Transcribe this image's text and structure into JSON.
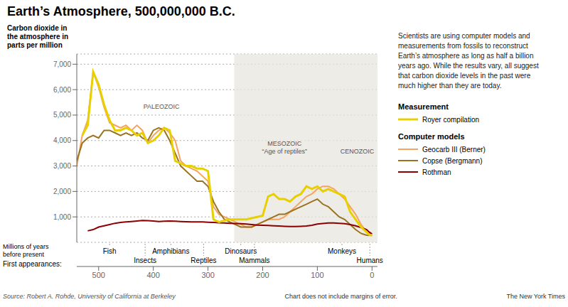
{
  "chart_data": {
    "type": "line",
    "title": "Earth’s Atmosphere, 500,000,000 B.C.",
    "description": [
      "Scientists are using computer models and",
      "measurements from fossils to reconstruct",
      "Earth’s atmosphere as long as half a billion",
      "years ago. While the results vary, all suggest",
      "that carbon dioxide levels in the past were",
      "much higher than they are today."
    ],
    "xlabel": "Millions of years\nbefore present",
    "ylabel": "Carbon dioxide in\nthe atmosphere in\nparts per million",
    "xlim": [
      540,
      -10
    ],
    "ylim": [
      0,
      7400
    ],
    "xticks": [
      500,
      400,
      300,
      200,
      100,
      0
    ],
    "yticks": [
      {
        "value": 1000,
        "label": "1,000"
      },
      {
        "value": 2000,
        "label": "2,000"
      },
      {
        "value": 3000,
        "label": "3,000"
      },
      {
        "value": 4000,
        "label": "4,000"
      },
      {
        "value": 5000,
        "label": "5,000"
      },
      {
        "value": 6000,
        "label": "6,000"
      },
      {
        "value": 7000,
        "label": "7,000"
      }
    ],
    "grid": true,
    "legend_groups": [
      "Measurement",
      "Computer models"
    ],
    "series": [
      {
        "name": "Geocarb III (Berner)",
        "group": "Computer models",
        "color": "#f4a460",
        "x": [
          540,
          530,
          520,
          510,
          500,
          490,
          480,
          470,
          460,
          450,
          440,
          430,
          420,
          410,
          400,
          390,
          380,
          370,
          360,
          350,
          340,
          330,
          320,
          310,
          300,
          290,
          280,
          270,
          260,
          250,
          240,
          230,
          220,
          210,
          200,
          190,
          180,
          170,
          160,
          150,
          140,
          130,
          120,
          110,
          100,
          90,
          80,
          70,
          60,
          50,
          40,
          30,
          20,
          10,
          0
        ],
        "values": [
          3000,
          4200,
          4800,
          6700,
          6100,
          5300,
          4700,
          4600,
          4500,
          4600,
          4400,
          4600,
          4400,
          3900,
          4200,
          4400,
          4500,
          4300,
          4000,
          3200,
          3000,
          2900,
          2800,
          2600,
          2400,
          1400,
          1100,
          1000,
          900,
          800,
          700,
          600,
          600,
          700,
          800,
          900,
          900,
          900,
          1000,
          1200,
          1400,
          1600,
          1800,
          1900,
          2100,
          2200,
          2200,
          2100,
          1900,
          1700,
          1400,
          1100,
          700,
          400,
          300
        ]
      },
      {
        "name": "Copse (Bergmann)",
        "group": "Computer models",
        "color": "#9b7320",
        "x": [
          540,
          530,
          520,
          510,
          500,
          490,
          480,
          470,
          460,
          450,
          440,
          430,
          420,
          410,
          400,
          390,
          380,
          370,
          360,
          350,
          340,
          330,
          320,
          310,
          300,
          290,
          280,
          270,
          260,
          250,
          240,
          230,
          220,
          210,
          200,
          190,
          180,
          170,
          160,
          150,
          140,
          130,
          120,
          110,
          100,
          90,
          80,
          70,
          60,
          50,
          40,
          30,
          20,
          10,
          0
        ],
        "values": [
          3200,
          3900,
          4100,
          4200,
          4100,
          4400,
          4400,
          4300,
          4200,
          4300,
          4200,
          4300,
          4100,
          4000,
          4400,
          4500,
          4400,
          4000,
          3500,
          3000,
          2800,
          2600,
          2400,
          2400,
          2200,
          1600,
          1200,
          900,
          800,
          700,
          600,
          600,
          600,
          700,
          800,
          900,
          1000,
          1100,
          1100,
          1200,
          1300,
          1400,
          1500,
          1600,
          1700,
          1500,
          1400,
          1200,
          1000,
          900,
          700,
          500,
          350,
          280,
          270
        ]
      },
      {
        "name": "Rothman",
        "group": "Computer models",
        "color": "#8b0000",
        "x": [
          520,
          510,
          500,
          490,
          480,
          470,
          460,
          450,
          440,
          430,
          420,
          410,
          400,
          390,
          380,
          370,
          360,
          350,
          340,
          330,
          320,
          310,
          300,
          290,
          280,
          270,
          260,
          250,
          240,
          230,
          220,
          210,
          200,
          190,
          180,
          170,
          160,
          150,
          140,
          130,
          120,
          110,
          100,
          90,
          80,
          70,
          60,
          50,
          40,
          30,
          20,
          10,
          5,
          0
        ],
        "values": [
          450,
          500,
          600,
          650,
          700,
          750,
          780,
          800,
          820,
          840,
          860,
          850,
          840,
          820,
          830,
          840,
          830,
          820,
          810,
          800,
          800,
          800,
          790,
          780,
          770,
          760,
          750,
          740,
          730,
          720,
          700,
          680,
          670,
          660,
          650,
          640,
          630,
          620,
          620,
          630,
          640,
          670,
          720,
          740,
          760,
          760,
          750,
          730,
          700,
          650,
          580,
          500,
          400,
          330
        ]
      },
      {
        "name": "Royer compilation",
        "group": "Measurement",
        "color": "#e8d000",
        "x": [
          530,
          520,
          510,
          500,
          490,
          480,
          470,
          460,
          450,
          440,
          430,
          420,
          410,
          400,
          390,
          380,
          370,
          360,
          350,
          340,
          330,
          320,
          310,
          300,
          290,
          280,
          270,
          260,
          250,
          240,
          230,
          220,
          210,
          200,
          190,
          180,
          170,
          160,
          150,
          140,
          130,
          120,
          110,
          100,
          90,
          80,
          70,
          60,
          50,
          40,
          30,
          20,
          10,
          5,
          0
        ],
        "values": [
          4200,
          4600,
          6700,
          6200,
          5400,
          4800,
          4400,
          4400,
          4500,
          4400,
          4200,
          4300,
          3900,
          4000,
          4200,
          4500,
          4400,
          3200,
          3100,
          3000,
          3000,
          2900,
          2900,
          2800,
          900,
          800,
          850,
          900,
          900,
          900,
          900,
          950,
          1000,
          1050,
          1800,
          1900,
          1700,
          1700,
          1600,
          1800,
          1900,
          2200,
          2100,
          2200,
          2000,
          2100,
          2000,
          1900,
          1800,
          1200,
          900,
          600,
          400,
          300,
          280
        ]
      }
    ],
    "shaded_regions": [
      {
        "x": [
          252,
          -10
        ],
        "color": "#e8e5df"
      }
    ],
    "annotations": [
      {
        "text": "PALEOZOIC",
        "x": 385,
        "y": 5250
      },
      {
        "text": "MESOZOIC\n“Age of reptiles”",
        "x": 160,
        "y": 3500
      },
      {
        "text": "CENOZOIC",
        "x": 27,
        "y": 3500
      }
    ],
    "first_appearances": {
      "title": "First appearances:",
      "items": [
        {
          "text": "Fish",
          "x": 480
        },
        {
          "text": "Insects",
          "x": 415
        },
        {
          "text": "Amphibians",
          "x": 368
        },
        {
          "text": "Reptiles",
          "x": 308
        },
        {
          "text": "Dinosaurs",
          "x": 240
        },
        {
          "text": "Mammals",
          "x": 215
        },
        {
          "text": "Monkeys",
          "x": 55
        },
        {
          "text": "Humans",
          "x": 4
        }
      ]
    },
    "source": "Source: Robert A. Rohde, University of California at Berkeley",
    "note": "Chart does not include margins of error.",
    "credit": "The New York Times"
  }
}
